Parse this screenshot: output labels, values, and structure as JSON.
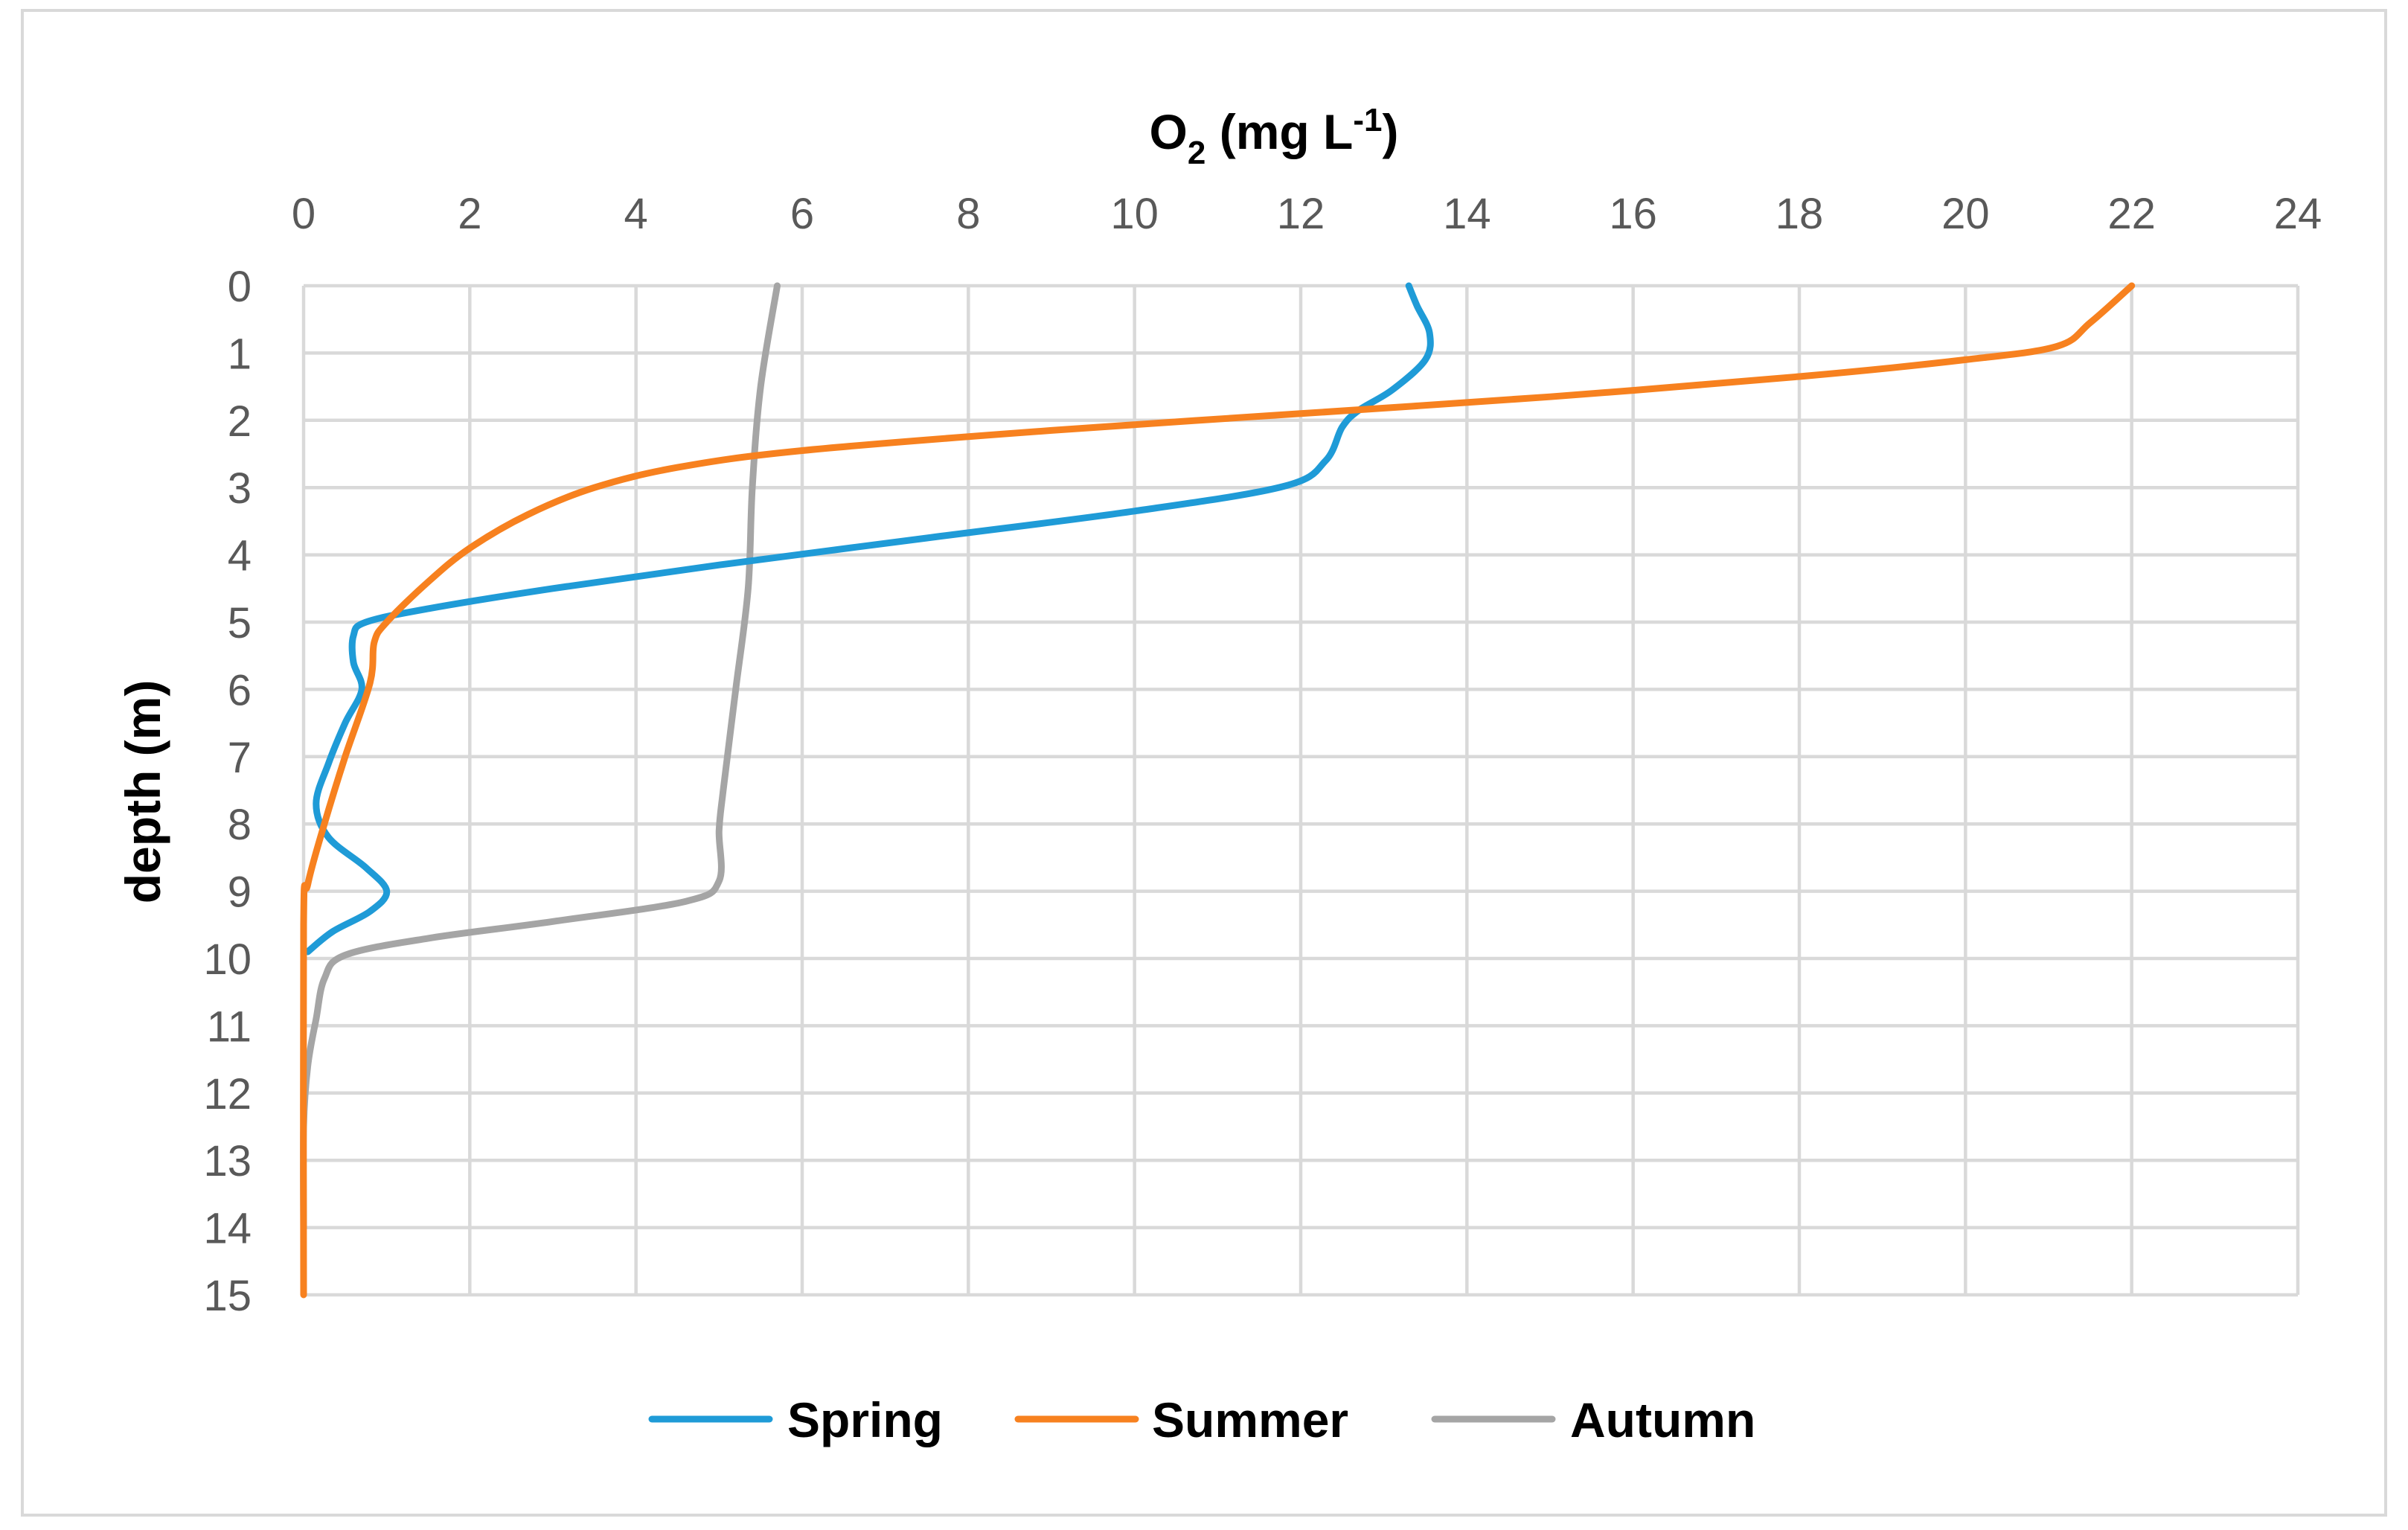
{
  "chart_data": {
    "type": "line",
    "orientation": "profile",
    "title": "",
    "xlabel": {
      "base": "O",
      "sub": "2",
      "mid": " (mg L",
      "sup": "-1",
      "end": ")"
    },
    "ylabel": "depth (m)",
    "x_axis_position": "top",
    "y_axis_inverted": true,
    "xlim": [
      0,
      24
    ],
    "ylim": [
      0,
      15
    ],
    "x_ticks": [
      "0",
      "2",
      "4",
      "6",
      "8",
      "10",
      "12",
      "14",
      "16",
      "18",
      "20",
      "22",
      "24"
    ],
    "y_ticks": [
      "0",
      "1",
      "2",
      "3",
      "4",
      "5",
      "6",
      "7",
      "8",
      "9",
      "10",
      "11",
      "12",
      "13",
      "14",
      "15"
    ],
    "grid": true,
    "legend_position": "bottom",
    "series": [
      {
        "name": "Spring",
        "color": "#1f9bd7",
        "points": [
          {
            "x": 13.3,
            "y": 0.0
          },
          {
            "x": 13.4,
            "y": 0.3
          },
          {
            "x": 13.55,
            "y": 0.7
          },
          {
            "x": 13.5,
            "y": 1.1
          },
          {
            "x": 13.1,
            "y": 1.55
          },
          {
            "x": 12.7,
            "y": 1.85
          },
          {
            "x": 12.5,
            "y": 2.1
          },
          {
            "x": 12.3,
            "y": 2.6
          },
          {
            "x": 11.8,
            "y": 2.98
          },
          {
            "x": 10.0,
            "y": 3.35
          },
          {
            "x": 7.5,
            "y": 3.75
          },
          {
            "x": 5.0,
            "y": 4.15
          },
          {
            "x": 3.0,
            "y": 4.5
          },
          {
            "x": 1.5,
            "y": 4.8
          },
          {
            "x": 0.75,
            "y": 5.0
          },
          {
            "x": 0.6,
            "y": 5.2
          },
          {
            "x": 0.6,
            "y": 5.6
          },
          {
            "x": 0.7,
            "y": 6.0
          },
          {
            "x": 0.5,
            "y": 6.5
          },
          {
            "x": 0.3,
            "y": 7.1
          },
          {
            "x": 0.15,
            "y": 7.7
          },
          {
            "x": 0.3,
            "y": 8.2
          },
          {
            "x": 0.75,
            "y": 8.65
          },
          {
            "x": 1.0,
            "y": 9.0
          },
          {
            "x": 0.8,
            "y": 9.3
          },
          {
            "x": 0.35,
            "y": 9.6
          },
          {
            "x": 0.05,
            "y": 9.9
          }
        ]
      },
      {
        "name": "Summer",
        "color": "#f7811f",
        "points": [
          {
            "x": 22.0,
            "y": 0.0
          },
          {
            "x": 21.5,
            "y": 0.55
          },
          {
            "x": 21.1,
            "y": 0.9
          },
          {
            "x": 20.0,
            "y": 1.1
          },
          {
            "x": 18.0,
            "y": 1.35
          },
          {
            "x": 15.0,
            "y": 1.65
          },
          {
            "x": 12.0,
            "y": 1.9
          },
          {
            "x": 9.0,
            "y": 2.15
          },
          {
            "x": 6.0,
            "y": 2.45
          },
          {
            "x": 4.5,
            "y": 2.7
          },
          {
            "x": 3.5,
            "y": 3.0
          },
          {
            "x": 2.7,
            "y": 3.4
          },
          {
            "x": 2.0,
            "y": 3.9
          },
          {
            "x": 1.5,
            "y": 4.4
          },
          {
            "x": 1.0,
            "y": 5.0
          },
          {
            "x": 0.85,
            "y": 5.3
          },
          {
            "x": 0.8,
            "y": 5.9
          },
          {
            "x": 0.5,
            "y": 7.0
          },
          {
            "x": 0.25,
            "y": 8.0
          },
          {
            "x": 0.05,
            "y": 8.9
          },
          {
            "x": 0.0,
            "y": 9.5
          },
          {
            "x": 0.0,
            "y": 15.0
          }
        ]
      },
      {
        "name": "Autumn",
        "color": "#a5a5a5",
        "points": [
          {
            "x": 5.7,
            "y": 0.0
          },
          {
            "x": 5.5,
            "y": 1.5
          },
          {
            "x": 5.4,
            "y": 3.0
          },
          {
            "x": 5.35,
            "y": 4.5
          },
          {
            "x": 5.2,
            "y": 6.0
          },
          {
            "x": 5.05,
            "y": 7.5
          },
          {
            "x": 5.0,
            "y": 8.1
          },
          {
            "x": 5.0,
            "y": 8.85
          },
          {
            "x": 4.6,
            "y": 9.15
          },
          {
            "x": 3.0,
            "y": 9.45
          },
          {
            "x": 1.5,
            "y": 9.7
          },
          {
            "x": 0.5,
            "y": 9.95
          },
          {
            "x": 0.25,
            "y": 10.3
          },
          {
            "x": 0.15,
            "y": 10.9
          },
          {
            "x": 0.05,
            "y": 11.6
          },
          {
            "x": 0.0,
            "y": 12.5
          },
          {
            "x": 0.0,
            "y": 14.0
          }
        ]
      }
    ]
  }
}
